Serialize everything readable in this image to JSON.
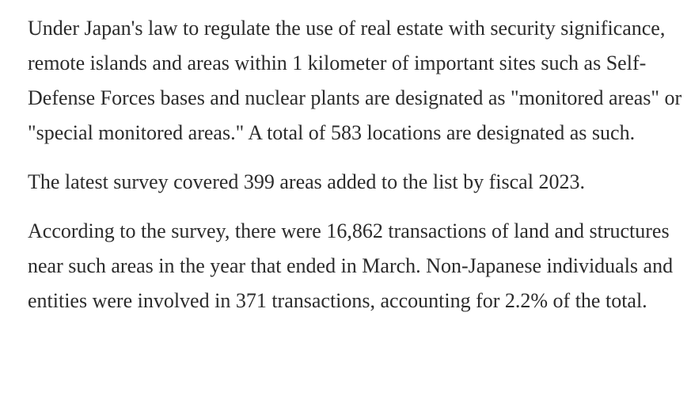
{
  "article": {
    "paragraphs": [
      "Under Japan's law to regulate the use of real estate with security significance, remote islands and areas within 1 kilometer of important sites such as Self-Defense Forces bases and nuclear plants are designated as \"monitored areas\" or \"special monitored areas.\" A total of 583 locations are designated as such.",
      "The latest survey covered 399 areas added to the list by fiscal 2023.",
      "According to the survey, there were 16,862 transactions of land and structures near such areas in the year that ended in March. Non-Japanese individuals and entities were involved in 371 transactions, accounting for 2.2% of the total."
    ]
  },
  "colors": {
    "text": "#2b2b2b",
    "background": "#ffffff"
  }
}
